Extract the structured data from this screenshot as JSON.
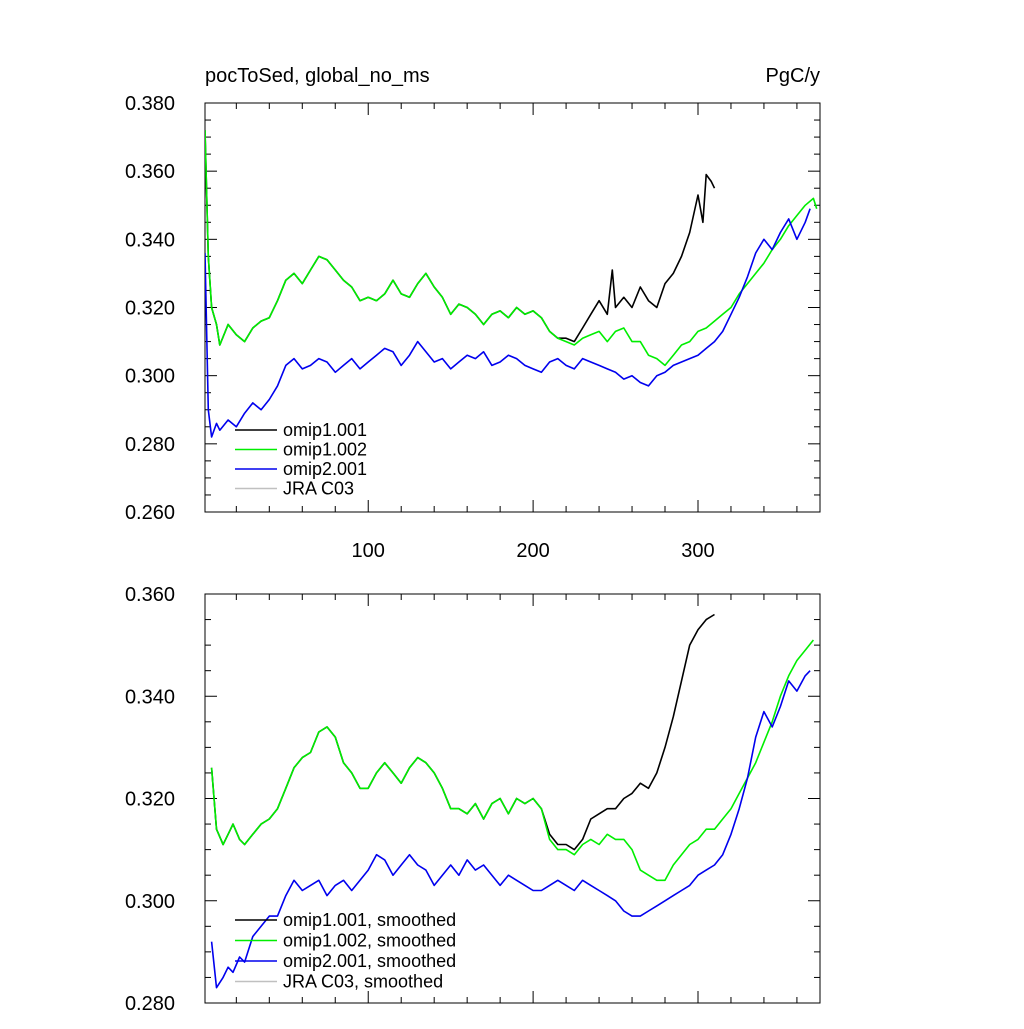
{
  "chart_data": [
    {
      "type": "line",
      "title": "pocToSed, global_no_ms",
      "units_label": "PgC/y",
      "xlabel": "",
      "ylabel": "",
      "xlim": [
        1,
        374
      ],
      "ylim": [
        0.26,
        0.38
      ],
      "yticks": [
        0.26,
        0.28,
        0.3,
        0.32,
        0.34,
        0.36,
        0.38
      ],
      "ytick_labels": [
        "0.260",
        "0.280",
        "0.300",
        "0.320",
        "0.340",
        "0.360",
        "0.380"
      ],
      "xticks": [
        100,
        200,
        300
      ],
      "xtick_labels": [
        "100",
        "200",
        "300"
      ],
      "legend_position": "lower-left",
      "series": [
        {
          "name": "omip1.001",
          "color": "#000000",
          "x": [
            1,
            3,
            5,
            8,
            10,
            15,
            20,
            25,
            30,
            35,
            40,
            45,
            50,
            55,
            60,
            65,
            70,
            75,
            80,
            85,
            90,
            95,
            100,
            105,
            110,
            115,
            120,
            125,
            130,
            135,
            140,
            145,
            150,
            155,
            160,
            165,
            170,
            175,
            180,
            185,
            190,
            195,
            200,
            205,
            210,
            215,
            220,
            225,
            230,
            235,
            240,
            245,
            248,
            250,
            255,
            260,
            265,
            270,
            275,
            280,
            285,
            290,
            295,
            300,
            303,
            305,
            308,
            310
          ],
          "values": [
            0.372,
            0.335,
            0.32,
            0.315,
            0.309,
            0.315,
            0.312,
            0.31,
            0.314,
            0.316,
            0.317,
            0.322,
            0.328,
            0.33,
            0.327,
            0.331,
            0.335,
            0.334,
            0.331,
            0.328,
            0.326,
            0.322,
            0.323,
            0.322,
            0.324,
            0.328,
            0.324,
            0.323,
            0.327,
            0.33,
            0.326,
            0.323,
            0.318,
            0.321,
            0.32,
            0.318,
            0.315,
            0.318,
            0.319,
            0.317,
            0.32,
            0.318,
            0.319,
            0.317,
            0.313,
            0.311,
            0.311,
            0.31,
            0.314,
            0.318,
            0.322,
            0.318,
            0.331,
            0.32,
            0.323,
            0.32,
            0.326,
            0.322,
            0.32,
            0.327,
            0.33,
            0.335,
            0.342,
            0.353,
            0.345,
            0.359,
            0.357,
            0.355
          ]
        },
        {
          "name": "omip1.002",
          "color": "#00ee00",
          "x": [
            1,
            3,
            5,
            8,
            10,
            15,
            20,
            25,
            30,
            35,
            40,
            45,
            50,
            55,
            60,
            65,
            70,
            75,
            80,
            85,
            90,
            95,
            100,
            105,
            110,
            115,
            120,
            125,
            130,
            135,
            140,
            145,
            150,
            155,
            160,
            165,
            170,
            175,
            180,
            185,
            190,
            195,
            200,
            205,
            210,
            215,
            220,
            225,
            230,
            235,
            240,
            245,
            250,
            255,
            260,
            265,
            270,
            275,
            280,
            285,
            290,
            295,
            300,
            305,
            310,
            315,
            320,
            325,
            330,
            335,
            340,
            345,
            350,
            355,
            360,
            365,
            370,
            372
          ],
          "values": [
            0.372,
            0.335,
            0.32,
            0.315,
            0.309,
            0.315,
            0.312,
            0.31,
            0.314,
            0.316,
            0.317,
            0.322,
            0.328,
            0.33,
            0.327,
            0.331,
            0.335,
            0.334,
            0.331,
            0.328,
            0.326,
            0.322,
            0.323,
            0.322,
            0.324,
            0.328,
            0.324,
            0.323,
            0.327,
            0.33,
            0.326,
            0.323,
            0.318,
            0.321,
            0.32,
            0.318,
            0.315,
            0.318,
            0.319,
            0.317,
            0.32,
            0.318,
            0.319,
            0.317,
            0.313,
            0.311,
            0.31,
            0.309,
            0.311,
            0.312,
            0.313,
            0.31,
            0.313,
            0.314,
            0.31,
            0.31,
            0.306,
            0.305,
            0.303,
            0.306,
            0.309,
            0.31,
            0.313,
            0.314,
            0.316,
            0.318,
            0.32,
            0.324,
            0.327,
            0.33,
            0.333,
            0.337,
            0.34,
            0.344,
            0.347,
            0.35,
            0.352,
            0.349
          ]
        },
        {
          "name": "omip2.001",
          "color": "#0000ee",
          "x": [
            1,
            3,
            5,
            8,
            10,
            15,
            20,
            25,
            30,
            35,
            40,
            45,
            50,
            55,
            60,
            65,
            70,
            75,
            80,
            85,
            90,
            95,
            100,
            105,
            110,
            115,
            120,
            125,
            130,
            135,
            140,
            145,
            150,
            155,
            160,
            165,
            170,
            175,
            180,
            185,
            190,
            195,
            200,
            205,
            210,
            215,
            220,
            225,
            230,
            235,
            240,
            245,
            250,
            255,
            260,
            265,
            270,
            275,
            280,
            285,
            290,
            295,
            300,
            305,
            310,
            315,
            320,
            325,
            330,
            335,
            340,
            345,
            350,
            355,
            360,
            365,
            368
          ],
          "values": [
            0.336,
            0.29,
            0.282,
            0.286,
            0.284,
            0.287,
            0.285,
            0.289,
            0.292,
            0.29,
            0.293,
            0.297,
            0.303,
            0.305,
            0.302,
            0.303,
            0.305,
            0.304,
            0.301,
            0.303,
            0.305,
            0.302,
            0.304,
            0.306,
            0.308,
            0.307,
            0.303,
            0.306,
            0.31,
            0.307,
            0.304,
            0.305,
            0.302,
            0.304,
            0.306,
            0.305,
            0.307,
            0.303,
            0.304,
            0.306,
            0.305,
            0.303,
            0.302,
            0.301,
            0.304,
            0.305,
            0.303,
            0.302,
            0.305,
            0.304,
            0.303,
            0.302,
            0.301,
            0.299,
            0.3,
            0.298,
            0.297,
            0.3,
            0.301,
            0.303,
            0.304,
            0.305,
            0.306,
            0.308,
            0.31,
            0.313,
            0.318,
            0.323,
            0.329,
            0.336,
            0.34,
            0.337,
            0.342,
            0.346,
            0.34,
            0.345,
            0.349
          ]
        },
        {
          "name": "JRA C03",
          "color": "#c0c0c0",
          "x": [],
          "values": []
        }
      ]
    },
    {
      "type": "line",
      "title": "",
      "xlabel": "",
      "ylabel": "",
      "xlim": [
        1,
        374
      ],
      "ylim": [
        0.28,
        0.36
      ],
      "yticks": [
        0.28,
        0.3,
        0.32,
        0.34,
        0.36
      ],
      "ytick_labels": [
        "0.280",
        "0.300",
        "0.320",
        "0.340",
        "0.360"
      ],
      "xticks": [
        100,
        200,
        300
      ],
      "xtick_labels": [],
      "legend_position": "lower-left",
      "series": [
        {
          "name": "omip1.001, smoothed",
          "color": "#000000",
          "x": [
            5,
            8,
            12,
            15,
            18,
            22,
            25,
            30,
            35,
            40,
            45,
            50,
            55,
            60,
            65,
            70,
            75,
            80,
            85,
            90,
            95,
            100,
            105,
            110,
            115,
            120,
            125,
            130,
            135,
            140,
            145,
            150,
            155,
            160,
            165,
            170,
            175,
            180,
            185,
            190,
            195,
            200,
            205,
            210,
            215,
            220,
            225,
            230,
            235,
            240,
            245,
            250,
            255,
            260,
            265,
            270,
            275,
            280,
            285,
            290,
            295,
            300,
            305,
            310
          ],
          "values": [
            0.326,
            0.314,
            0.311,
            0.313,
            0.315,
            0.312,
            0.311,
            0.313,
            0.315,
            0.316,
            0.318,
            0.322,
            0.326,
            0.328,
            0.329,
            0.333,
            0.334,
            0.332,
            0.327,
            0.325,
            0.322,
            0.322,
            0.325,
            0.327,
            0.325,
            0.323,
            0.326,
            0.328,
            0.327,
            0.325,
            0.322,
            0.318,
            0.318,
            0.317,
            0.319,
            0.316,
            0.319,
            0.32,
            0.317,
            0.32,
            0.319,
            0.32,
            0.318,
            0.313,
            0.311,
            0.311,
            0.31,
            0.312,
            0.316,
            0.317,
            0.318,
            0.318,
            0.32,
            0.321,
            0.323,
            0.322,
            0.325,
            0.33,
            0.336,
            0.343,
            0.35,
            0.353,
            0.355,
            0.356
          ]
        },
        {
          "name": "omip1.002, smoothed",
          "color": "#00ee00",
          "x": [
            5,
            8,
            12,
            15,
            18,
            22,
            25,
            30,
            35,
            40,
            45,
            50,
            55,
            60,
            65,
            70,
            75,
            80,
            85,
            90,
            95,
            100,
            105,
            110,
            115,
            120,
            125,
            130,
            135,
            140,
            145,
            150,
            155,
            160,
            165,
            170,
            175,
            180,
            185,
            190,
            195,
            200,
            205,
            210,
            215,
            220,
            225,
            230,
            235,
            240,
            245,
            250,
            255,
            260,
            265,
            270,
            275,
            280,
            285,
            290,
            295,
            300,
            305,
            310,
            315,
            320,
            325,
            330,
            335,
            340,
            345,
            350,
            355,
            360,
            365,
            370
          ],
          "values": [
            0.326,
            0.314,
            0.311,
            0.313,
            0.315,
            0.312,
            0.311,
            0.313,
            0.315,
            0.316,
            0.318,
            0.322,
            0.326,
            0.328,
            0.329,
            0.333,
            0.334,
            0.332,
            0.327,
            0.325,
            0.322,
            0.322,
            0.325,
            0.327,
            0.325,
            0.323,
            0.326,
            0.328,
            0.327,
            0.325,
            0.322,
            0.318,
            0.318,
            0.317,
            0.319,
            0.316,
            0.319,
            0.32,
            0.317,
            0.32,
            0.319,
            0.32,
            0.318,
            0.312,
            0.31,
            0.31,
            0.309,
            0.311,
            0.312,
            0.311,
            0.313,
            0.312,
            0.312,
            0.31,
            0.306,
            0.305,
            0.304,
            0.304,
            0.307,
            0.309,
            0.311,
            0.312,
            0.314,
            0.314,
            0.316,
            0.318,
            0.321,
            0.324,
            0.327,
            0.331,
            0.335,
            0.34,
            0.344,
            0.347,
            0.349,
            0.351
          ]
        },
        {
          "name": "omip2.001, smoothed",
          "color": "#0000ee",
          "x": [
            5,
            8,
            12,
            15,
            18,
            22,
            25,
            30,
            35,
            40,
            45,
            50,
            55,
            60,
            65,
            70,
            75,
            80,
            85,
            90,
            95,
            100,
            105,
            110,
            115,
            120,
            125,
            130,
            135,
            140,
            145,
            150,
            155,
            160,
            165,
            170,
            175,
            180,
            185,
            190,
            195,
            200,
            205,
            210,
            215,
            220,
            225,
            230,
            235,
            240,
            245,
            250,
            255,
            260,
            265,
            270,
            275,
            280,
            285,
            290,
            295,
            300,
            305,
            310,
            315,
            320,
            325,
            330,
            335,
            340,
            345,
            350,
            355,
            360,
            365,
            368
          ],
          "values": [
            0.292,
            0.283,
            0.285,
            0.287,
            0.286,
            0.289,
            0.288,
            0.293,
            0.295,
            0.297,
            0.297,
            0.301,
            0.304,
            0.302,
            0.303,
            0.304,
            0.301,
            0.303,
            0.304,
            0.302,
            0.304,
            0.306,
            0.309,
            0.308,
            0.305,
            0.307,
            0.309,
            0.307,
            0.306,
            0.303,
            0.305,
            0.307,
            0.305,
            0.308,
            0.306,
            0.307,
            0.305,
            0.303,
            0.305,
            0.304,
            0.303,
            0.302,
            0.302,
            0.303,
            0.304,
            0.303,
            0.302,
            0.304,
            0.303,
            0.302,
            0.301,
            0.3,
            0.298,
            0.297,
            0.297,
            0.298,
            0.299,
            0.3,
            0.301,
            0.302,
            0.303,
            0.305,
            0.306,
            0.307,
            0.309,
            0.313,
            0.318,
            0.324,
            0.332,
            0.337,
            0.334,
            0.338,
            0.343,
            0.341,
            0.344,
            0.345
          ]
        },
        {
          "name": "JRA C03, smoothed",
          "color": "#c0c0c0",
          "x": [],
          "values": []
        }
      ]
    }
  ]
}
